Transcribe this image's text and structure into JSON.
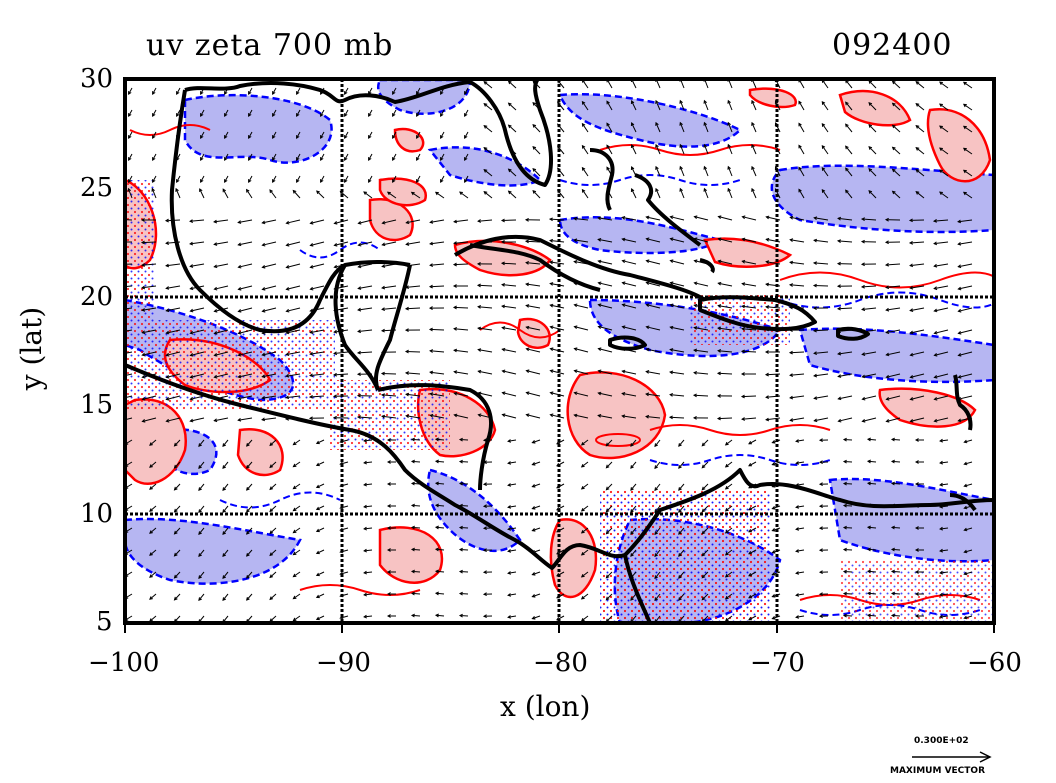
{
  "map": {
    "title_left": "uv zeta 700 mb",
    "title_right": "092400",
    "x_label": "x (lon)",
    "y_label": "y (lat)",
    "x_ticks": [
      "−100",
      "−90",
      "−80",
      "−70",
      "−60"
    ],
    "y_ticks": [
      "30",
      "25",
      "20",
      "15",
      "10",
      "5"
    ],
    "x_range": [
      -100,
      -60
    ],
    "y_range": [
      5,
      30
    ],
    "gridlines": "every 10° longitude, every 10° latitude",
    "vector_scale_value": "0.300E+02",
    "vector_scale_caption": "MAXIMUM VECTOR",
    "colors": {
      "positive_vorticity_fill": "#f7c3c3",
      "positive_vorticity_line": "#ff0000",
      "negative_vorticity_fill": "#b6b6f2",
      "negative_vorticity_line": "#0000ff",
      "coastline": "#000000"
    }
  }
}
